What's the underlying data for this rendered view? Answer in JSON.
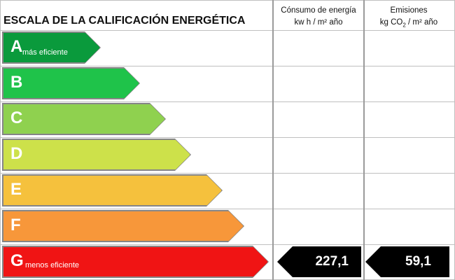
{
  "header": {
    "title": "ESCALA DE LA CALIFICACIÓN ENERGÉTICA",
    "consumption_line1": "Cónsumo de energía",
    "consumption_line2": "kw h / m² año",
    "emissions_line1": "Emisiones",
    "emissions_line2_pre": "kg CO",
    "emissions_line2_sub": "2",
    "emissions_line2_post": " / m² año"
  },
  "ratings": [
    {
      "letter": "A",
      "desc": "más eficiente",
      "color": "#0a9a3c"
    },
    {
      "letter": "B",
      "desc": "",
      "color": "#1fc34a"
    },
    {
      "letter": "C",
      "desc": "",
      "color": "#8fd14f"
    },
    {
      "letter": "D",
      "desc": "",
      "color": "#cde14a"
    },
    {
      "letter": "E",
      "desc": "",
      "color": "#f5c13d"
    },
    {
      "letter": "F",
      "desc": "",
      "color": "#f7973a"
    },
    {
      "letter": "G",
      "desc": "menos eficiente",
      "color": "#f01414"
    }
  ],
  "result": {
    "rating": "G",
    "consumption": "227,1",
    "emissions": "59,1"
  }
}
